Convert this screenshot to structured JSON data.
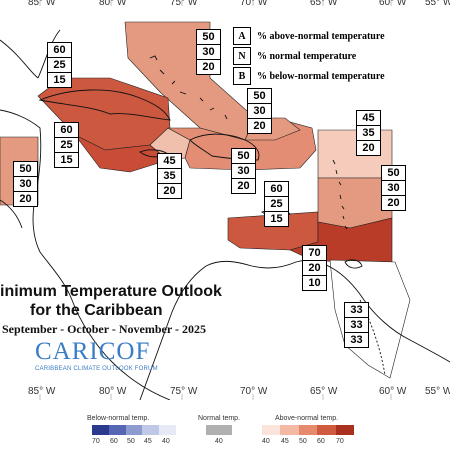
{
  "longitude_labels": [
    "85° W",
    "80° W",
    "75° W",
    "70° W",
    "65° W",
    "60° W",
    "55° W"
  ],
  "legend": [
    {
      "letter": "A",
      "text": "% above-normal temperature"
    },
    {
      "letter": "N",
      "text": "% normal temperature"
    },
    {
      "letter": "B",
      "text": "% below-normal temperature"
    }
  ],
  "regions": [
    {
      "id": "bahamas",
      "A": "50",
      "N": "30",
      "B": "20",
      "color": "#e49a80"
    },
    {
      "id": "cuba-west",
      "A": "60",
      "N": "25",
      "B": "15",
      "color": "#cc5840"
    },
    {
      "id": "cayman",
      "A": "60",
      "N": "25",
      "B": "15",
      "color": "#c84c36"
    },
    {
      "id": "belize",
      "A": "50",
      "N": "30",
      "B": "20",
      "color": "#e49a80"
    },
    {
      "id": "jamaica",
      "A": "45",
      "N": "35",
      "B": "20",
      "color": "#f0c0ac"
    },
    {
      "id": "hispaniola",
      "A": "50",
      "N": "30",
      "B": "20",
      "color": "#e38e74"
    },
    {
      "id": "turks-caicos",
      "A": "50",
      "N": "30",
      "B": "20",
      "color": "#e49a80"
    },
    {
      "id": "leeward",
      "A": "45",
      "N": "35",
      "B": "20",
      "color": "#f5ccbb"
    },
    {
      "id": "puerto-rico",
      "A": "60",
      "N": "25",
      "B": "15",
      "color": "#cc5840"
    },
    {
      "id": "windward",
      "A": "50",
      "N": "30",
      "B": "20",
      "color": "#e49a80"
    },
    {
      "id": "trinidad",
      "A": "70",
      "N": "20",
      "B": "10",
      "color": "#b83c27"
    },
    {
      "id": "guianas",
      "A": "33",
      "N": "33",
      "B": "33",
      "color": "#ffffff"
    }
  ],
  "title": {
    "line1": "inimum Temperature Outlook",
    "line2": "for the Caribbean",
    "line3": "September - October - November - 2025"
  },
  "logo": {
    "name": "CARICOF",
    "subtitle": "CARIBBEAN CLIMATE OUTLOOK FORUM"
  },
  "colorbar": {
    "below": {
      "label": "Below-normal temp.",
      "ticks": [
        "70",
        "60",
        "50",
        "45",
        "40"
      ],
      "colors": [
        "#2b3a8c",
        "#5566b5",
        "#8d9bd0",
        "#bfc8e6",
        "#e6eaf6"
      ]
    },
    "normal": {
      "label": "Normal temp.",
      "ticks": [
        "40"
      ],
      "colors": [
        "#b0b0b0"
      ]
    },
    "above": {
      "label": "Above-normal temp.",
      "ticks": [
        "40",
        "45",
        "50",
        "60",
        "70"
      ],
      "colors": [
        "#fbe4dc",
        "#f3b9a5",
        "#e68a6e",
        "#cf5a40",
        "#a92f1f"
      ]
    }
  }
}
